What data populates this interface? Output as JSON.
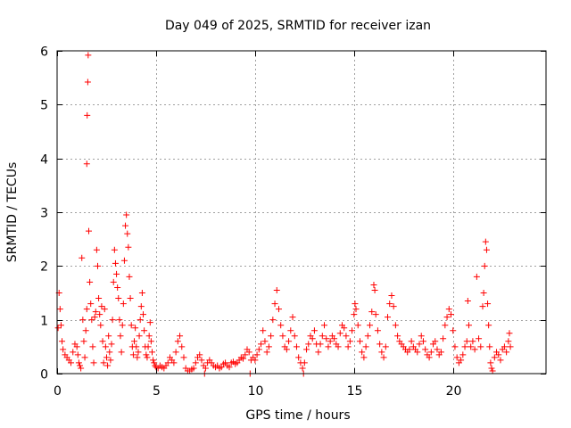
{
  "chart_data": {
    "type": "scatter",
    "title": "Day 049 of 2025, SRMTID for receiver izan",
    "xlabel": "GPS time / hours",
    "ylabel": "SRMTID / TECUs",
    "xlim": [
      0,
      24.7
    ],
    "ylim": [
      0,
      6
    ],
    "xticks": [
      0,
      5,
      10,
      15,
      20
    ],
    "xtick_labels": [
      "0",
      "5",
      "10",
      "15",
      "20"
    ],
    "yticks": [
      0,
      1,
      2,
      3,
      4,
      5,
      6
    ],
    "ytick_labels": [
      "0",
      "1",
      "2",
      "3",
      "4",
      "5",
      "6"
    ],
    "grid": true,
    "marker": "+",
    "color": "#ff0000",
    "series": [
      {
        "name": "SRMTID",
        "points": [
          [
            0.05,
            0.85
          ],
          [
            0.1,
            1.5
          ],
          [
            0.15,
            1.2
          ],
          [
            0.2,
            0.9
          ],
          [
            0.25,
            0.6
          ],
          [
            0.3,
            0.45
          ],
          [
            0.4,
            0.35
          ],
          [
            0.5,
            0.3
          ],
          [
            0.6,
            0.25
          ],
          [
            0.7,
            0.2
          ],
          [
            0.8,
            0.4
          ],
          [
            0.9,
            0.55
          ],
          [
            1.0,
            0.5
          ],
          [
            1.05,
            0.35
          ],
          [
            1.1,
            0.2
          ],
          [
            1.15,
            0.15
          ],
          [
            1.2,
            0.1
          ],
          [
            1.25,
            2.15
          ],
          [
            1.3,
            1.0
          ],
          [
            1.35,
            0.6
          ],
          [
            1.4,
            0.3
          ],
          [
            1.45,
            0.8
          ],
          [
            1.5,
            1.2
          ],
          [
            1.5,
            3.9
          ],
          [
            1.52,
            4.8
          ],
          [
            1.55,
            5.42
          ],
          [
            1.57,
            5.92
          ],
          [
            1.6,
            2.65
          ],
          [
            1.65,
            1.7
          ],
          [
            1.7,
            1.3
          ],
          [
            1.75,
            1.0
          ],
          [
            1.8,
            0.5
          ],
          [
            1.85,
            0.2
          ],
          [
            1.9,
            1.05
          ],
          [
            1.95,
            1.15
          ],
          [
            2.0,
            2.3
          ],
          [
            2.05,
            2.0
          ],
          [
            2.1,
            1.4
          ],
          [
            2.15,
            1.1
          ],
          [
            2.2,
            0.9
          ],
          [
            2.25,
            1.25
          ],
          [
            2.3,
            0.6
          ],
          [
            2.35,
            0.2
          ],
          [
            2.4,
            1.2
          ],
          [
            2.45,
            0.5
          ],
          [
            2.5,
            0.3
          ],
          [
            2.55,
            0.15
          ],
          [
            2.6,
            0.7
          ],
          [
            2.65,
            0.4
          ],
          [
            2.7,
            0.25
          ],
          [
            2.75,
            0.55
          ],
          [
            2.8,
            1.0
          ],
          [
            2.85,
            1.7
          ],
          [
            2.9,
            2.3
          ],
          [
            2.95,
            2.05
          ],
          [
            3.0,
            1.85
          ],
          [
            3.05,
            1.6
          ],
          [
            3.1,
            1.4
          ],
          [
            3.15,
            1.0
          ],
          [
            3.2,
            0.7
          ],
          [
            3.25,
            0.4
          ],
          [
            3.3,
            0.9
          ],
          [
            3.35,
            1.3
          ],
          [
            3.4,
            2.1
          ],
          [
            3.45,
            2.75
          ],
          [
            3.5,
            2.95
          ],
          [
            3.55,
            2.6
          ],
          [
            3.6,
            2.35
          ],
          [
            3.65,
            1.8
          ],
          [
            3.7,
            1.4
          ],
          [
            3.75,
            0.9
          ],
          [
            3.8,
            0.5
          ],
          [
            3.85,
            0.35
          ],
          [
            3.9,
            0.6
          ],
          [
            3.95,
            0.85
          ],
          [
            4.0,
            0.5
          ],
          [
            4.05,
            0.3
          ],
          [
            4.1,
            0.4
          ],
          [
            4.15,
            0.7
          ],
          [
            4.2,
            1.0
          ],
          [
            4.25,
            1.25
          ],
          [
            4.3,
            1.5
          ],
          [
            4.35,
            1.1
          ],
          [
            4.4,
            0.8
          ],
          [
            4.45,
            0.5
          ],
          [
            4.5,
            0.35
          ],
          [
            4.55,
            0.3
          ],
          [
            4.6,
            0.5
          ],
          [
            4.65,
            0.7
          ],
          [
            4.7,
            0.95
          ],
          [
            4.75,
            0.6
          ],
          [
            4.8,
            0.4
          ],
          [
            4.85,
            0.25
          ],
          [
            4.9,
            0.2
          ],
          [
            4.95,
            0.15
          ],
          [
            5.0,
            0.12
          ],
          [
            5.1,
            0.1
          ],
          [
            5.2,
            0.15
          ],
          [
            5.3,
            0.12
          ],
          [
            5.4,
            0.1
          ],
          [
            5.5,
            0.15
          ],
          [
            5.6,
            0.2
          ],
          [
            5.7,
            0.3
          ],
          [
            5.8,
            0.25
          ],
          [
            5.9,
            0.2
          ],
          [
            6.0,
            0.4
          ],
          [
            6.1,
            0.6
          ],
          [
            6.2,
            0.7
          ],
          [
            6.3,
            0.5
          ],
          [
            6.4,
            0.3
          ],
          [
            6.5,
            0.1
          ],
          [
            6.6,
            0.05
          ],
          [
            6.7,
            0.05
          ],
          [
            6.8,
            0.08
          ],
          [
            6.9,
            0.1
          ],
          [
            7.0,
            0.2
          ],
          [
            7.1,
            0.3
          ],
          [
            7.2,
            0.35
          ],
          [
            7.3,
            0.25
          ],
          [
            7.4,
            0.15
          ],
          [
            7.45,
            0.0
          ],
          [
            7.5,
            0.1
          ],
          [
            7.6,
            0.2
          ],
          [
            7.7,
            0.25
          ],
          [
            7.8,
            0.2
          ],
          [
            7.9,
            0.15
          ],
          [
            8.0,
            0.12
          ],
          [
            8.1,
            0.15
          ],
          [
            8.2,
            0.1
          ],
          [
            8.3,
            0.12
          ],
          [
            8.4,
            0.18
          ],
          [
            8.5,
            0.2
          ],
          [
            8.6,
            0.15
          ],
          [
            8.7,
            0.12
          ],
          [
            8.8,
            0.2
          ],
          [
            8.9,
            0.22
          ],
          [
            9.0,
            0.18
          ],
          [
            9.1,
            0.2
          ],
          [
            9.2,
            0.25
          ],
          [
            9.3,
            0.3
          ],
          [
            9.4,
            0.28
          ],
          [
            9.5,
            0.35
          ],
          [
            9.6,
            0.45
          ],
          [
            9.7,
            0.4
          ],
          [
            9.75,
            0.0
          ],
          [
            9.8,
            0.25
          ],
          [
            9.9,
            0.3
          ],
          [
            10.0,
            0.25
          ],
          [
            10.1,
            0.35
          ],
          [
            10.2,
            0.45
          ],
          [
            10.3,
            0.55
          ],
          [
            10.4,
            0.8
          ],
          [
            10.5,
            0.6
          ],
          [
            10.6,
            0.4
          ],
          [
            10.7,
            0.5
          ],
          [
            10.8,
            0.7
          ],
          [
            10.9,
            1.0
          ],
          [
            11.0,
            1.3
          ],
          [
            11.1,
            1.55
          ],
          [
            11.2,
            1.2
          ],
          [
            11.3,
            0.9
          ],
          [
            11.4,
            0.7
          ],
          [
            11.5,
            0.5
          ],
          [
            11.6,
            0.45
          ],
          [
            11.7,
            0.6
          ],
          [
            11.8,
            0.8
          ],
          [
            11.9,
            1.05
          ],
          [
            12.0,
            0.7
          ],
          [
            12.1,
            0.5
          ],
          [
            12.2,
            0.3
          ],
          [
            12.3,
            0.2
          ],
          [
            12.4,
            0.1
          ],
          [
            12.45,
            0.0
          ],
          [
            12.5,
            0.2
          ],
          [
            12.6,
            0.45
          ],
          [
            12.7,
            0.55
          ],
          [
            12.8,
            0.7
          ],
          [
            12.9,
            0.65
          ],
          [
            13.0,
            0.8
          ],
          [
            13.1,
            0.55
          ],
          [
            13.2,
            0.4
          ],
          [
            13.3,
            0.55
          ],
          [
            13.4,
            0.7
          ],
          [
            13.5,
            0.9
          ],
          [
            13.6,
            0.65
          ],
          [
            13.7,
            0.5
          ],
          [
            13.8,
            0.6
          ],
          [
            13.9,
            0.7
          ],
          [
            14.0,
            0.65
          ],
          [
            14.1,
            0.55
          ],
          [
            14.2,
            0.5
          ],
          [
            14.3,
            0.75
          ],
          [
            14.4,
            0.9
          ],
          [
            14.5,
            0.85
          ],
          [
            14.6,
            0.7
          ],
          [
            14.7,
            0.5
          ],
          [
            14.8,
            0.6
          ],
          [
            14.9,
            0.8
          ],
          [
            15.0,
            1.1
          ],
          [
            15.05,
            1.3
          ],
          [
            15.1,
            1.2
          ],
          [
            15.2,
            0.9
          ],
          [
            15.3,
            0.6
          ],
          [
            15.4,
            0.4
          ],
          [
            15.5,
            0.3
          ],
          [
            15.6,
            0.5
          ],
          [
            15.7,
            0.7
          ],
          [
            15.8,
            0.9
          ],
          [
            15.9,
            1.15
          ],
          [
            16.0,
            1.65
          ],
          [
            16.05,
            1.55
          ],
          [
            16.1,
            1.1
          ],
          [
            16.2,
            0.8
          ],
          [
            16.3,
            0.55
          ],
          [
            16.4,
            0.4
          ],
          [
            16.5,
            0.3
          ],
          [
            16.6,
            0.5
          ],
          [
            16.7,
            1.05
          ],
          [
            16.8,
            1.3
          ],
          [
            16.9,
            1.45
          ],
          [
            17.0,
            1.25
          ],
          [
            17.1,
            0.9
          ],
          [
            17.2,
            0.7
          ],
          [
            17.3,
            0.6
          ],
          [
            17.4,
            0.55
          ],
          [
            17.5,
            0.5
          ],
          [
            17.6,
            0.45
          ],
          [
            17.7,
            0.4
          ],
          [
            17.8,
            0.45
          ],
          [
            17.9,
            0.6
          ],
          [
            18.0,
            0.5
          ],
          [
            18.1,
            0.45
          ],
          [
            18.2,
            0.4
          ],
          [
            18.3,
            0.55
          ],
          [
            18.4,
            0.7
          ],
          [
            18.5,
            0.6
          ],
          [
            18.6,
            0.45
          ],
          [
            18.7,
            0.35
          ],
          [
            18.8,
            0.3
          ],
          [
            18.9,
            0.4
          ],
          [
            19.0,
            0.55
          ],
          [
            19.1,
            0.6
          ],
          [
            19.2,
            0.45
          ],
          [
            19.3,
            0.35
          ],
          [
            19.4,
            0.4
          ],
          [
            19.5,
            0.65
          ],
          [
            19.6,
            0.9
          ],
          [
            19.7,
            1.05
          ],
          [
            19.8,
            1.2
          ],
          [
            19.9,
            1.1
          ],
          [
            20.0,
            0.8
          ],
          [
            20.1,
            0.5
          ],
          [
            20.2,
            0.3
          ],
          [
            20.3,
            0.2
          ],
          [
            20.4,
            0.25
          ],
          [
            20.5,
            0.35
          ],
          [
            20.6,
            0.5
          ],
          [
            20.7,
            0.6
          ],
          [
            20.75,
            1.35
          ],
          [
            20.8,
            0.9
          ],
          [
            20.9,
            0.5
          ],
          [
            21.0,
            0.6
          ],
          [
            21.1,
            0.45
          ],
          [
            21.2,
            1.8
          ],
          [
            21.3,
            0.65
          ],
          [
            21.4,
            0.5
          ],
          [
            21.5,
            1.25
          ],
          [
            21.55,
            1.5
          ],
          [
            21.6,
            2.0
          ],
          [
            21.65,
            2.45
          ],
          [
            21.7,
            2.3
          ],
          [
            21.75,
            1.3
          ],
          [
            21.8,
            0.9
          ],
          [
            21.85,
            0.5
          ],
          [
            21.9,
            0.2
          ],
          [
            21.95,
            0.1
          ],
          [
            22.0,
            0.05
          ],
          [
            22.1,
            0.3
          ],
          [
            22.2,
            0.4
          ],
          [
            22.3,
            0.35
          ],
          [
            22.4,
            0.25
          ],
          [
            22.5,
            0.45
          ],
          [
            22.6,
            0.5
          ],
          [
            22.7,
            0.4
          ],
          [
            22.8,
            0.6
          ],
          [
            22.85,
            0.75
          ],
          [
            22.9,
            0.5
          ]
        ]
      }
    ]
  }
}
